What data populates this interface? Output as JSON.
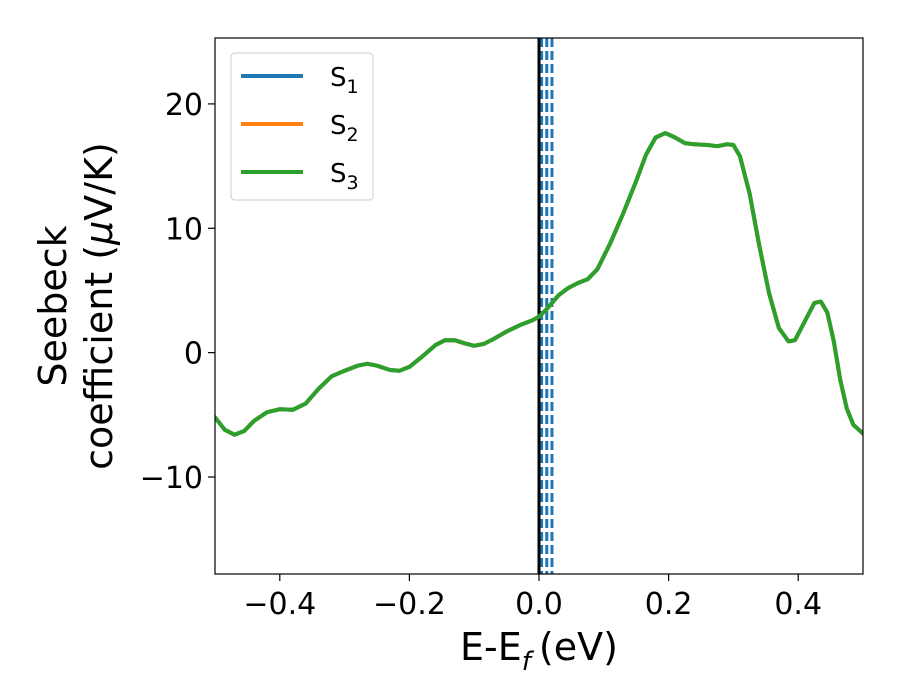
{
  "chart_data": {
    "type": "line",
    "xlabel": "E-E",
    "xlabel_sub": "f",
    "xlabel_unit": "(eV)",
    "ylabel_line1": "Seebeck",
    "ylabel_line2": "coefficient  (",
    "ylabel_mu": "μ",
    "ylabel_unit": "V/K)",
    "xlim": [
      -0.5,
      0.5
    ],
    "ylim": [
      -17.8,
      25.3
    ],
    "xticks": [
      -0.4,
      -0.2,
      0.0,
      0.2,
      0.4
    ],
    "xtick_labels": [
      "−0.4",
      "−0.2",
      "0.0",
      "0.2",
      "0.4"
    ],
    "yticks": [
      -10,
      0,
      10,
      20
    ],
    "ytick_labels": [
      "−10",
      "0",
      "10",
      "20"
    ],
    "grid": false,
    "legend_position": "top-left",
    "fermi_line": {
      "x": 0.0,
      "color": "#000000",
      "style": "solid"
    },
    "dashed_lines": {
      "x": [
        0.004,
        0.012,
        0.02
      ],
      "color": "#1f77b4",
      "style": "dashed"
    },
    "series": [
      {
        "name": "S",
        "sub": "1",
        "color": "#1f77b4",
        "values_same_as": "S3"
      },
      {
        "name": "S",
        "sub": "2",
        "color": "#ff7f0e",
        "values_same_as": "S3"
      },
      {
        "name": "S",
        "sub": "3",
        "color": "#2ca02c",
        "points": [
          [
            -0.5,
            -5.2
          ],
          [
            -0.485,
            -6.2
          ],
          [
            -0.47,
            -6.6
          ],
          [
            -0.455,
            -6.3
          ],
          [
            -0.44,
            -5.5
          ],
          [
            -0.42,
            -4.8
          ],
          [
            -0.4,
            -4.55
          ],
          [
            -0.38,
            -4.6
          ],
          [
            -0.36,
            -4.1
          ],
          [
            -0.34,
            -2.9
          ],
          [
            -0.32,
            -1.9
          ],
          [
            -0.3,
            -1.45
          ],
          [
            -0.28,
            -1.05
          ],
          [
            -0.265,
            -0.9
          ],
          [
            -0.25,
            -1.05
          ],
          [
            -0.23,
            -1.4
          ],
          [
            -0.215,
            -1.45
          ],
          [
            -0.2,
            -1.15
          ],
          [
            -0.18,
            -0.3
          ],
          [
            -0.16,
            0.6
          ],
          [
            -0.145,
            1.0
          ],
          [
            -0.13,
            1.0
          ],
          [
            -0.115,
            0.75
          ],
          [
            -0.1,
            0.55
          ],
          [
            -0.085,
            0.7
          ],
          [
            -0.07,
            1.1
          ],
          [
            -0.05,
            1.7
          ],
          [
            -0.03,
            2.2
          ],
          [
            -0.01,
            2.6
          ],
          [
            0.0,
            2.9
          ],
          [
            0.01,
            3.4
          ],
          [
            0.02,
            4.0
          ],
          [
            0.03,
            4.6
          ],
          [
            0.045,
            5.2
          ],
          [
            0.06,
            5.6
          ],
          [
            0.075,
            5.9
          ],
          [
            0.09,
            6.7
          ],
          [
            0.11,
            8.8
          ],
          [
            0.13,
            11.2
          ],
          [
            0.15,
            13.8
          ],
          [
            0.165,
            15.9
          ],
          [
            0.18,
            17.3
          ],
          [
            0.195,
            17.65
          ],
          [
            0.21,
            17.3
          ],
          [
            0.225,
            16.85
          ],
          [
            0.24,
            16.75
          ],
          [
            0.26,
            16.7
          ],
          [
            0.275,
            16.6
          ],
          [
            0.29,
            16.75
          ],
          [
            0.3,
            16.7
          ],
          [
            0.31,
            15.8
          ],
          [
            0.325,
            12.8
          ],
          [
            0.34,
            8.6
          ],
          [
            0.355,
            4.8
          ],
          [
            0.37,
            2.0
          ],
          [
            0.385,
            0.9
          ],
          [
            0.395,
            1.0
          ],
          [
            0.41,
            2.5
          ],
          [
            0.425,
            4.0
          ],
          [
            0.435,
            4.1
          ],
          [
            0.445,
            3.2
          ],
          [
            0.455,
            0.9
          ],
          [
            0.465,
            -2.2
          ],
          [
            0.475,
            -4.5
          ],
          [
            0.485,
            -5.8
          ],
          [
            0.5,
            -6.5
          ]
        ]
      }
    ]
  }
}
